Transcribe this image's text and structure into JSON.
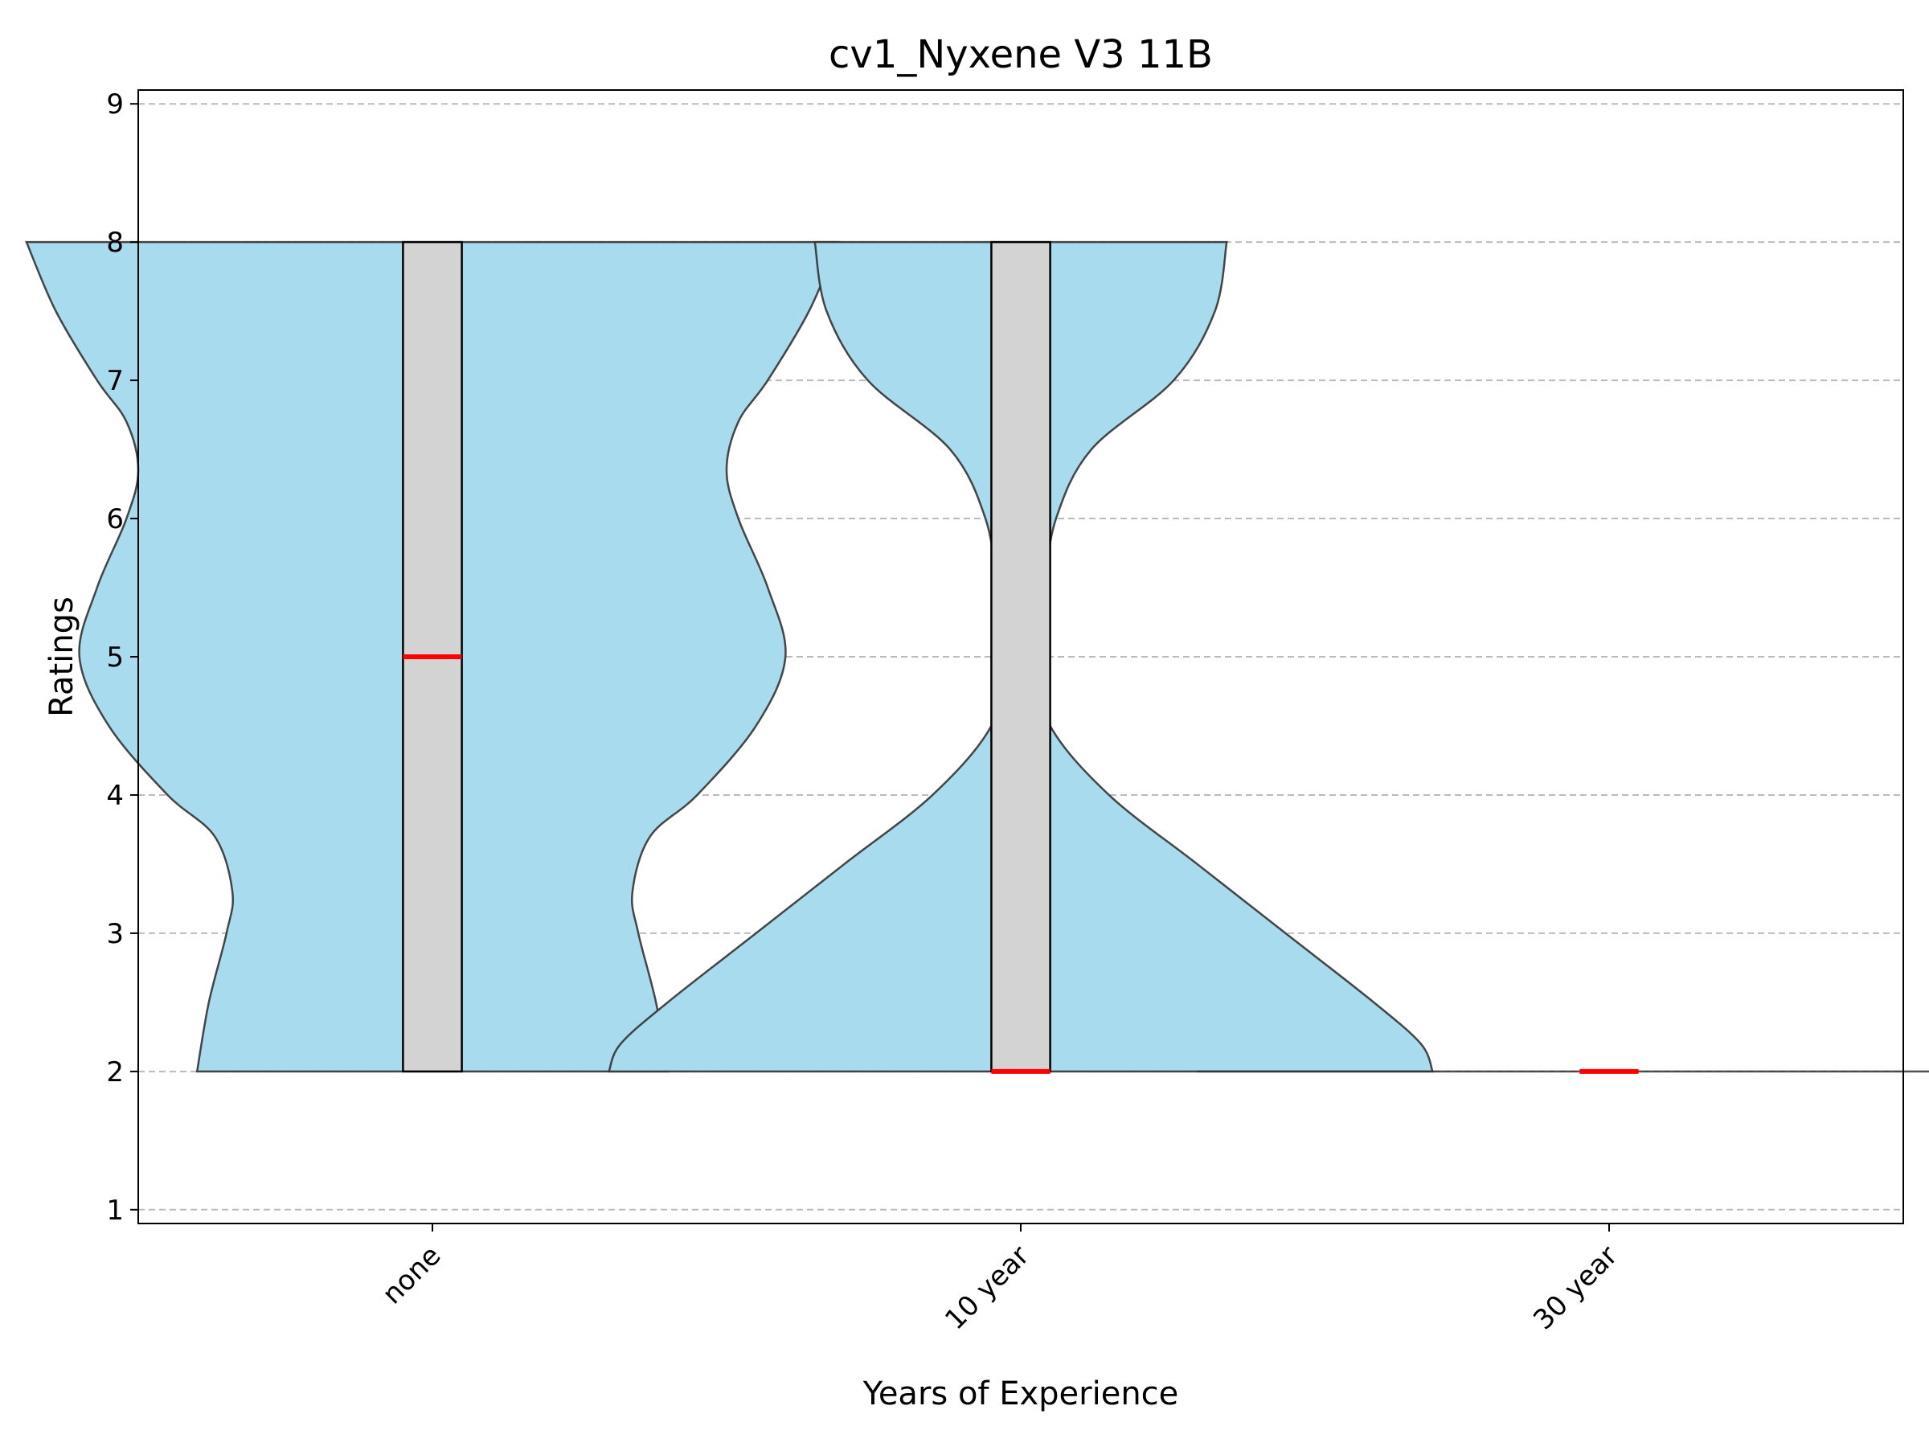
{
  "chart_data": {
    "type": "violin",
    "title": "cv1_Nyxene V3 11B",
    "xlabel": "Years of Experience",
    "ylabel": "Ratings",
    "categories": [
      "none",
      "10 year",
      "30 year"
    ],
    "ylim": [
      0.9,
      9.1
    ],
    "yticks": [
      1,
      2,
      3,
      4,
      5,
      6,
      7,
      8,
      9
    ],
    "grid": "horizontal-dashed",
    "violin_color": "#a8dbee",
    "box_color": "#d3d3d3",
    "median_color": "#ff0000",
    "series": [
      {
        "category": "none",
        "min": 2,
        "q1": 2,
        "median": 5,
        "q3": 8,
        "max": 8,
        "density_ratings": [
          2,
          2.5,
          3,
          3.3,
          3.7,
          4,
          4.5,
          5,
          5.5,
          6,
          6.35,
          6.7,
          7,
          7.5,
          8
        ],
        "density_half_width": [
          0.4,
          0.38,
          0.35,
          0.34,
          0.37,
          0.45,
          0.55,
          0.6,
          0.57,
          0.52,
          0.5,
          0.52,
          0.57,
          0.64,
          0.69
        ]
      },
      {
        "category": "10 year",
        "min": 2,
        "q1": 2,
        "median": 2,
        "q3": 8,
        "max": 8,
        "density_ratings": [
          2,
          2.2,
          2.5,
          3,
          3.5,
          4,
          4.5,
          5,
          5.5,
          6,
          6.5,
          7,
          7.5,
          8
        ],
        "density_half_width": [
          0.7,
          0.68,
          0.6,
          0.45,
          0.3,
          0.15,
          0.05,
          0.02,
          0.04,
          0.06,
          0.12,
          0.26,
          0.33,
          0.35
        ]
      },
      {
        "category": "30 year",
        "min": 2,
        "q1": 2,
        "median": 2,
        "q3": 2,
        "max": 2,
        "density_ratings": [
          2
        ],
        "density_half_width": [
          0.7
        ]
      }
    ]
  }
}
